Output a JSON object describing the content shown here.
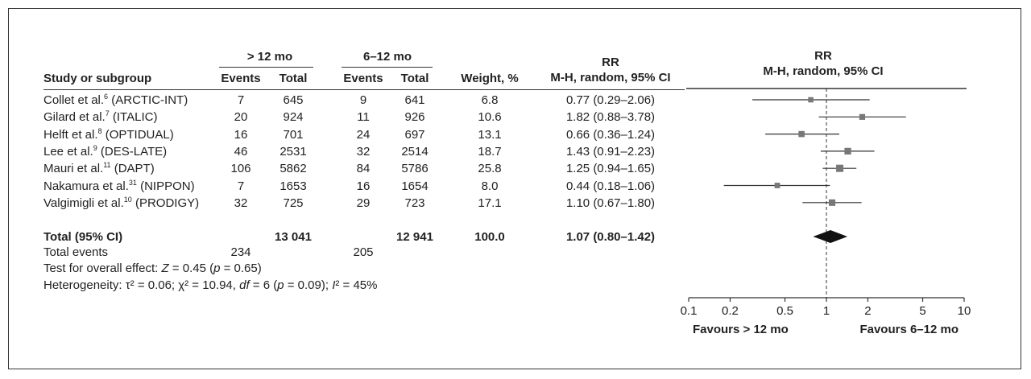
{
  "headers": {
    "study": "Study or subgroup",
    "group1": "> 12 mo",
    "group2": "6–12 mo",
    "events": "Events",
    "total": "Total",
    "weight": "Weight, %",
    "rr_title": "RR",
    "rr_method": "M-H, random, 95% CI"
  },
  "studies": [
    {
      "author": "Collet et al.",
      "ref": "6",
      "trial": " (ARCTIC-INT)",
      "e1": "7",
      "t1": "645",
      "e2": "9",
      "t2": "641",
      "weight": "6.8",
      "ci_text": "0.77 (0.29–2.06)"
    },
    {
      "author": "Gilard et al.",
      "ref": "7",
      "trial": " (ITALIC)",
      "e1": "20",
      "t1": "924",
      "e2": "11",
      "t2": "926",
      "weight": "10.6",
      "ci_text": "1.82 (0.88–3.78)"
    },
    {
      "author": "Helft et al.",
      "ref": "8",
      "trial": " (OPTIDUAL)",
      "e1": "16",
      "t1": "701",
      "e2": "24",
      "t2": "697",
      "weight": "13.1",
      "ci_text": "0.66 (0.36–1.24)"
    },
    {
      "author": "Lee et al.",
      "ref": "9",
      "trial": " (DES-LATE)",
      "e1": "46",
      "t1": "2531",
      "e2": "32",
      "t2": "2514",
      "weight": "18.7",
      "ci_text": "1.43 (0.91–2.23)"
    },
    {
      "author": "Mauri et al.",
      "ref": "11",
      "trial": " (DAPT)",
      "e1": "106",
      "t1": "5862",
      "e2": "84",
      "t2": "5786",
      "weight": "25.8",
      "ci_text": "1.25 (0.94–1.65)"
    },
    {
      "author": "Nakamura et al.",
      "ref": "31",
      "trial": " (NIPPON)",
      "e1": "7",
      "t1": "1653",
      "e2": "16",
      "t2": "1654",
      "weight": "8.0",
      "ci_text": "0.44 (0.18–1.06)"
    },
    {
      "author": "Valgimigli et al.",
      "ref": "10",
      "trial": " (PRODIGY)",
      "e1": "32",
      "t1": "725",
      "e2": "29",
      "t2": "723",
      "weight": "17.1",
      "ci_text": "1.10 (0.67–1.80)"
    }
  ],
  "total": {
    "label": "Total (95% CI)",
    "t1": "13 041",
    "t2": "12 941",
    "weight": "100.0",
    "ci_text": "1.07 (0.80–1.42)",
    "events_label": "Total events",
    "e1": "234",
    "e2": "205"
  },
  "footer": {
    "overall_prefix": "Test for overall effect: ",
    "overall_z": "Z",
    "overall_mid": " = 0.45 (",
    "overall_p": "p",
    "overall_end": " = 0.65)",
    "het_a": "Heterogeneity: τ² = 0.06; χ² = 10.94, ",
    "het_df": "df",
    "het_b": " = 6 (",
    "het_p": "p",
    "het_c": " = 0.09); ",
    "het_i": "I",
    "het_d": "² = 45%"
  },
  "plot_labels": {
    "title": "RR",
    "method": "M-H, random, 95% CI",
    "favours_left": "Favours > 12 mo",
    "favours_right": "Favours 6–12 mo"
  },
  "chart_data": {
    "type": "forest",
    "title": "RR",
    "subtitle": "M-H, random, 95% CI",
    "x_scale": "log",
    "xlim": [
      0.1,
      10
    ],
    "null_line": 1,
    "ticks": [
      0.1,
      0.2,
      0.5,
      1,
      2,
      5,
      10
    ],
    "tick_labels": [
      "0.1",
      "0.2",
      "0.5",
      "1",
      "2",
      "5",
      "10"
    ],
    "categories": [
      "Collet et al.6 (ARCTIC-INT)",
      "Gilard et al.7 (ITALIC)",
      "Helft et al.8 (OPTIDUAL)",
      "Lee et al.9 (DES-LATE)",
      "Mauri et al.11 (DAPT)",
      "Nakamura et al.31 (NIPPON)",
      "Valgimigli et al.10 (PRODIGY)"
    ],
    "rr": [
      0.77,
      1.82,
      0.66,
      1.43,
      1.25,
      0.44,
      1.1
    ],
    "lower": [
      0.29,
      0.88,
      0.36,
      0.91,
      0.94,
      0.18,
      0.67
    ],
    "upper": [
      2.06,
      3.78,
      1.24,
      2.23,
      1.65,
      1.06,
      1.8
    ],
    "weights": [
      6.8,
      10.6,
      13.1,
      18.7,
      25.8,
      8.0,
      17.1
    ],
    "pooled": {
      "rr": 1.07,
      "lower": 0.8,
      "upper": 1.42
    },
    "xlabel_left": "Favours > 12 mo",
    "xlabel_right": "Favours 6–12 mo",
    "colors": {
      "line": "#333333",
      "marker": "#777777",
      "diamond": "#111111"
    }
  }
}
